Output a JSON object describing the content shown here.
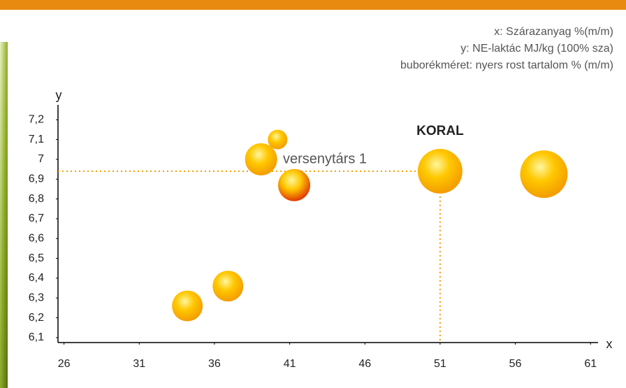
{
  "chart_data": {
    "type": "bubble",
    "axis_notes": [
      "x: Szárazanyag %(m/m)",
      "y: NE-laktác MJ/kg (100% sza)",
      "buborékméret: nyers rost tartalom % (m/m)"
    ],
    "x_label": "x",
    "y_label": "y",
    "annotations": [
      "KORAL",
      "versenytárs 1"
    ],
    "series": [
      {
        "x": [
          34.2,
          36.9,
          39.1,
          40.2,
          41.3,
          51.0,
          57.9
        ],
        "values": [
          6.26,
          6.36,
          7.0,
          7.1,
          6.87,
          6.94,
          6.925
        ],
        "sizes": [
          22,
          22,
          23,
          14,
          23,
          32,
          34
        ],
        "colors": [
          "#f39c00",
          "#f39c00",
          "#f39c00",
          "#f39c00",
          "#e03a00",
          "#f39c00",
          "#f39c00"
        ]
      }
    ],
    "xlim": [
      25.6,
      61.5
    ],
    "xticks": [
      26,
      31,
      36,
      41,
      46,
      51,
      56,
      61
    ],
    "ylim": [
      6.075,
      7.275
    ],
    "yticks": [
      {
        "value": 6.1,
        "label": "6,1"
      },
      {
        "value": 6.2,
        "label": "6,2"
      },
      {
        "value": 6.3,
        "label": "6,3"
      },
      {
        "value": 6.4,
        "label": "6,4"
      },
      {
        "value": 6.5,
        "label": "6,5"
      },
      {
        "value": 6.6,
        "label": "6,6"
      },
      {
        "value": 6.7,
        "label": "6,7"
      },
      {
        "value": 6.8,
        "label": "6,8"
      },
      {
        "value": 6.9,
        "label": "6,9"
      },
      7,
      {
        "value": 7.1,
        "label": "7,1"
      },
      {
        "value": 7.2,
        "label": "7,2"
      }
    ],
    "reference_color": "#f39c00",
    "highlight_index": 5
  }
}
